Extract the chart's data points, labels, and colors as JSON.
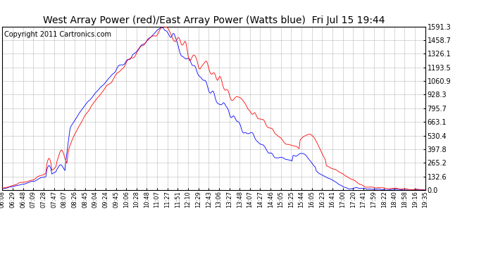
{
  "title": "West Array Power (red)/East Array Power (Watts blue)  Fri Jul 15 19:44",
  "copyright": "Copyright 2011 Cartronics.com",
  "yticks": [
    0.0,
    132.6,
    265.2,
    397.8,
    530.4,
    663.1,
    795.7,
    928.3,
    1060.9,
    1193.5,
    1326.1,
    1458.7,
    1591.3
  ],
  "ymax": 1591.3,
  "ymin": 0.0,
  "red_color": "#FF0000",
  "blue_color": "#0000FF",
  "bg_color": "#FFFFFF",
  "grid_color": "#BBBBBB",
  "title_fontsize": 10,
  "copyright_fontsize": 7,
  "xtick_labels": [
    "06:08",
    "06:29",
    "06:48",
    "07:09",
    "07:28",
    "07:47",
    "08:07",
    "08:26",
    "08:45",
    "09:04",
    "09:24",
    "09:45",
    "10:06",
    "10:28",
    "10:48",
    "11:07",
    "11:27",
    "11:51",
    "12:10",
    "12:29",
    "12:43",
    "13:06",
    "13:27",
    "13:48",
    "14:07",
    "14:27",
    "14:46",
    "15:05",
    "15:25",
    "15:44",
    "16:05",
    "16:23",
    "16:41",
    "17:00",
    "17:20",
    "17:41",
    "17:59",
    "18:22",
    "18:40",
    "18:58",
    "19:16",
    "19:35"
  ]
}
